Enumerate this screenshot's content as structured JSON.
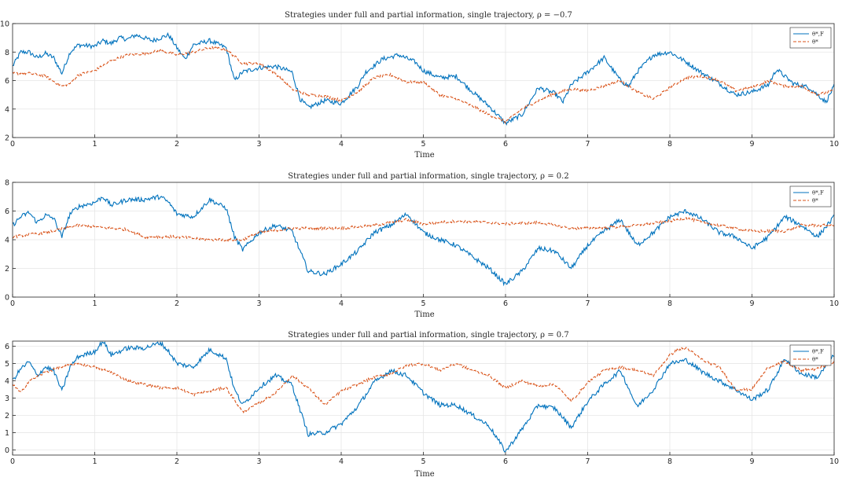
{
  "chart_data": [
    {
      "type": "line",
      "title": "Strategies under full and partial information, single trajectory, ρ = −0.7",
      "xlabel": "Time",
      "ylabel": "",
      "xlim": [
        0,
        10
      ],
      "ylim": [
        2,
        10
      ],
      "xticks": [
        "0",
        "1",
        "2",
        "3",
        "4",
        "5",
        "6",
        "7",
        "8",
        "9",
        "10"
      ],
      "yticks": [
        "2",
        "4",
        "6",
        "8",
        "10"
      ],
      "grid": true,
      "legend_position": "top-right",
      "series": [
        {
          "name": "θ^{*,F}",
          "label": "θ*,F",
          "style": "solid",
          "color": "#0072BD",
          "x": [
            0,
            0.1,
            0.2,
            0.3,
            0.4,
            0.5,
            0.6,
            0.7,
            0.8,
            1.0,
            1.1,
            1.2,
            1.3,
            1.4,
            1.5,
            1.7,
            1.9,
            2.0,
            2.1,
            2.2,
            2.4,
            2.6,
            2.7,
            2.8,
            3.0,
            3.2,
            3.4,
            3.5,
            3.6,
            3.8,
            4.0,
            4.2,
            4.3,
            4.5,
            4.7,
            4.9,
            5.0,
            5.2,
            5.4,
            5.6,
            5.8,
            6.0,
            6.2,
            6.4,
            6.6,
            6.7,
            6.8,
            7.0,
            7.2,
            7.4,
            7.5,
            7.6,
            7.8,
            8.0,
            8.2,
            8.4,
            8.6,
            8.8,
            9.0,
            9.2,
            9.3,
            9.5,
            9.7,
            9.9,
            10.0
          ],
          "y": [
            7.0,
            8.0,
            8.0,
            7.6,
            7.9,
            7.6,
            6.5,
            8.0,
            8.5,
            8.4,
            8.8,
            8.6,
            9.0,
            8.9,
            9.2,
            8.8,
            9.2,
            8.3,
            7.5,
            8.5,
            8.8,
            8.3,
            6.0,
            6.6,
            6.9,
            7.0,
            6.6,
            4.7,
            4.1,
            4.6,
            4.4,
            5.6,
            6.6,
            7.5,
            7.8,
            7.3,
            6.7,
            6.2,
            6.3,
            5.2,
            4.2,
            3.0,
            3.6,
            5.5,
            5.1,
            4.5,
            5.7,
            6.6,
            7.6,
            6.0,
            5.6,
            6.6,
            7.8,
            8.0,
            7.3,
            6.5,
            5.8,
            5.0,
            5.2,
            5.7,
            6.8,
            5.8,
            5.5,
            4.5,
            5.6
          ]
        },
        {
          "name": "θ^{*}",
          "label": "θ*",
          "style": "dashed",
          "color": "#D95319",
          "x": [
            0,
            0.2,
            0.4,
            0.6,
            0.7,
            0.8,
            1.0,
            1.2,
            1.4,
            1.6,
            1.8,
            2.0,
            2.2,
            2.4,
            2.6,
            2.8,
            3.0,
            3.2,
            3.4,
            3.6,
            3.8,
            4.0,
            4.2,
            4.4,
            4.6,
            4.8,
            5.0,
            5.2,
            5.4,
            5.6,
            5.8,
            6.0,
            6.2,
            6.4,
            6.6,
            6.8,
            7.0,
            7.2,
            7.4,
            7.6,
            7.8,
            8.0,
            8.2,
            8.4,
            8.6,
            8.8,
            9.0,
            9.2,
            9.4,
            9.6,
            9.8,
            10.0
          ],
          "y": [
            6.5,
            6.5,
            6.3,
            5.6,
            5.8,
            6.4,
            6.7,
            7.4,
            7.8,
            7.9,
            8.1,
            7.8,
            8.0,
            8.3,
            8.2,
            7.2,
            7.2,
            6.5,
            5.4,
            5.0,
            4.9,
            4.6,
            5.2,
            6.2,
            6.4,
            5.9,
            5.9,
            5.0,
            4.7,
            4.2,
            3.6,
            3.1,
            4.0,
            4.6,
            5.1,
            5.4,
            5.3,
            5.6,
            6.0,
            5.2,
            4.7,
            5.5,
            6.2,
            6.3,
            6.0,
            5.3,
            5.5,
            6.0,
            5.6,
            5.6,
            5.0,
            5.3
          ]
        }
      ]
    },
    {
      "type": "line",
      "title": "Strategies under full and partial information, single trajectory, ρ = 0.2",
      "xlabel": "Time",
      "ylabel": "",
      "xlim": [
        0,
        10
      ],
      "ylim": [
        0,
        8
      ],
      "xticks": [
        "0",
        "1",
        "2",
        "3",
        "4",
        "5",
        "6",
        "7",
        "8",
        "9",
        "10"
      ],
      "yticks": [
        "0",
        "2",
        "4",
        "6",
        "8"
      ],
      "grid": true,
      "legend_position": "top-right",
      "series": [
        {
          "name": "θ^{*,F}",
          "label": "θ*,F",
          "style": "solid",
          "color": "#0072BD",
          "x": [
            0,
            0.1,
            0.2,
            0.3,
            0.4,
            0.5,
            0.6,
            0.7,
            0.8,
            1.0,
            1.1,
            1.2,
            1.4,
            1.6,
            1.8,
            1.9,
            2.0,
            2.2,
            2.4,
            2.6,
            2.7,
            2.8,
            3.0,
            3.2,
            3.4,
            3.5,
            3.6,
            3.8,
            4.0,
            4.2,
            4.4,
            4.6,
            4.8,
            5.0,
            5.2,
            5.4,
            5.6,
            5.8,
            6.0,
            6.2,
            6.4,
            6.6,
            6.8,
            7.0,
            7.2,
            7.4,
            7.6,
            7.8,
            8.0,
            8.2,
            8.4,
            8.6,
            8.8,
            9.0,
            9.2,
            9.4,
            9.6,
            9.8,
            10.0
          ],
          "y": [
            5.0,
            5.6,
            5.9,
            5.2,
            5.7,
            5.5,
            4.2,
            5.8,
            6.3,
            6.6,
            7.0,
            6.4,
            6.8,
            6.8,
            7.0,
            6.6,
            5.8,
            5.6,
            6.8,
            6.2,
            4.2,
            3.3,
            4.5,
            5.0,
            4.6,
            3.2,
            1.8,
            1.6,
            2.3,
            3.2,
            4.5,
            5.0,
            5.8,
            4.5,
            4.0,
            3.6,
            2.8,
            2.0,
            0.9,
            1.8,
            3.4,
            3.2,
            2.0,
            3.6,
            4.6,
            5.4,
            3.6,
            4.5,
            5.6,
            6.0,
            5.4,
            4.5,
            4.2,
            3.4,
            4.2,
            5.6,
            5.0,
            4.2,
            5.6
          ]
        },
        {
          "name": "θ^{*}",
          "label": "θ*",
          "style": "dashed",
          "color": "#D95319",
          "x": [
            0,
            0.4,
            0.8,
            1.0,
            1.4,
            1.6,
            2.0,
            2.4,
            2.8,
            3.0,
            3.4,
            3.6,
            4.0,
            4.4,
            4.8,
            5.0,
            5.4,
            5.8,
            6.0,
            6.4,
            6.8,
            7.0,
            7.4,
            7.6,
            8.0,
            8.2,
            8.4,
            8.8,
            9.0,
            9.4,
            9.6,
            9.8,
            10.0
          ],
          "y": [
            4.2,
            4.5,
            5.0,
            4.9,
            4.7,
            4.2,
            4.2,
            4.0,
            4.0,
            4.5,
            4.8,
            4.8,
            4.8,
            5.0,
            5.4,
            5.1,
            5.3,
            5.2,
            5.1,
            5.2,
            4.8,
            4.8,
            4.9,
            5.0,
            5.3,
            5.5,
            5.2,
            4.8,
            4.6,
            4.6,
            5.0,
            5.0,
            5.0
          ]
        }
      ]
    },
    {
      "type": "line",
      "title": "Strategies under full and partial information, single trajectory, ρ = 0.7",
      "xlabel": "Time",
      "ylabel": "",
      "xlim": [
        0,
        10
      ],
      "ylim": [
        -0.3,
        6.3
      ],
      "xticks": [
        "0",
        "1",
        "2",
        "3",
        "4",
        "5",
        "6",
        "7",
        "8",
        "9",
        "10"
      ],
      "yticks": [
        "0",
        "1",
        "2",
        "3",
        "4",
        "5",
        "6"
      ],
      "grid": true,
      "legend_position": "top-right",
      "series": [
        {
          "name": "θ^{*,F}",
          "label": "θ*,F",
          "style": "solid",
          "color": "#0072BD",
          "x": [
            0,
            0.1,
            0.2,
            0.3,
            0.4,
            0.5,
            0.6,
            0.7,
            0.8,
            1.0,
            1.1,
            1.2,
            1.4,
            1.6,
            1.8,
            1.9,
            2.0,
            2.2,
            2.4,
            2.6,
            2.7,
            2.8,
            3.0,
            3.2,
            3.4,
            3.5,
            3.6,
            3.8,
            4.0,
            4.2,
            4.4,
            4.6,
            4.8,
            5.0,
            5.2,
            5.4,
            5.6,
            5.8,
            6.0,
            6.2,
            6.4,
            6.6,
            6.8,
            7.0,
            7.2,
            7.4,
            7.6,
            7.8,
            8.0,
            8.2,
            8.4,
            8.6,
            8.8,
            9.0,
            9.2,
            9.4,
            9.6,
            9.8,
            10.0
          ],
          "y": [
            4.0,
            4.7,
            5.1,
            4.3,
            4.8,
            4.6,
            3.4,
            4.8,
            5.4,
            5.7,
            6.3,
            5.5,
            5.9,
            5.9,
            6.2,
            5.7,
            5.0,
            4.8,
            5.8,
            5.3,
            3.5,
            2.6,
            3.6,
            4.3,
            3.8,
            2.3,
            0.9,
            1.0,
            1.5,
            2.5,
            3.9,
            4.6,
            4.3,
            3.3,
            2.6,
            2.6,
            2.0,
            1.4,
            -0.1,
            1.2,
            2.6,
            2.4,
            1.3,
            2.8,
            3.8,
            4.6,
            2.5,
            3.5,
            5.0,
            5.2,
            4.5,
            4.0,
            3.5,
            2.9,
            3.5,
            5.3,
            4.4,
            4.2,
            5.5
          ]
        },
        {
          "name": "θ^{*}",
          "label": "θ*",
          "style": "dashed",
          "color": "#D95319",
          "x": [
            0,
            0.1,
            0.2,
            0.4,
            0.6,
            0.8,
            1.0,
            1.2,
            1.4,
            1.6,
            1.8,
            2.0,
            2.2,
            2.4,
            2.6,
            2.7,
            2.8,
            3.0,
            3.2,
            3.4,
            3.6,
            3.8,
            4.0,
            4.2,
            4.4,
            4.6,
            4.8,
            5.0,
            5.2,
            5.4,
            5.6,
            5.8,
            6.0,
            6.2,
            6.4,
            6.6,
            6.8,
            7.0,
            7.2,
            7.4,
            7.6,
            7.8,
            8.0,
            8.1,
            8.2,
            8.4,
            8.6,
            8.8,
            9.0,
            9.2,
            9.4,
            9.6,
            9.8,
            10.0
          ],
          "y": [
            3.8,
            3.3,
            4.0,
            4.5,
            4.8,
            5.0,
            4.8,
            4.5,
            4.0,
            3.8,
            3.6,
            3.6,
            3.2,
            3.4,
            3.6,
            2.9,
            2.2,
            2.7,
            3.3,
            4.3,
            3.6,
            2.6,
            3.4,
            3.8,
            4.2,
            4.4,
            4.9,
            5.0,
            4.6,
            5.0,
            4.6,
            4.3,
            3.6,
            4.0,
            3.7,
            3.8,
            2.8,
            3.9,
            4.6,
            4.8,
            4.6,
            4.3,
            5.5,
            5.8,
            5.9,
            5.2,
            4.8,
            3.5,
            3.5,
            4.8,
            5.1,
            4.6,
            4.7,
            5.1
          ]
        }
      ]
    }
  ]
}
